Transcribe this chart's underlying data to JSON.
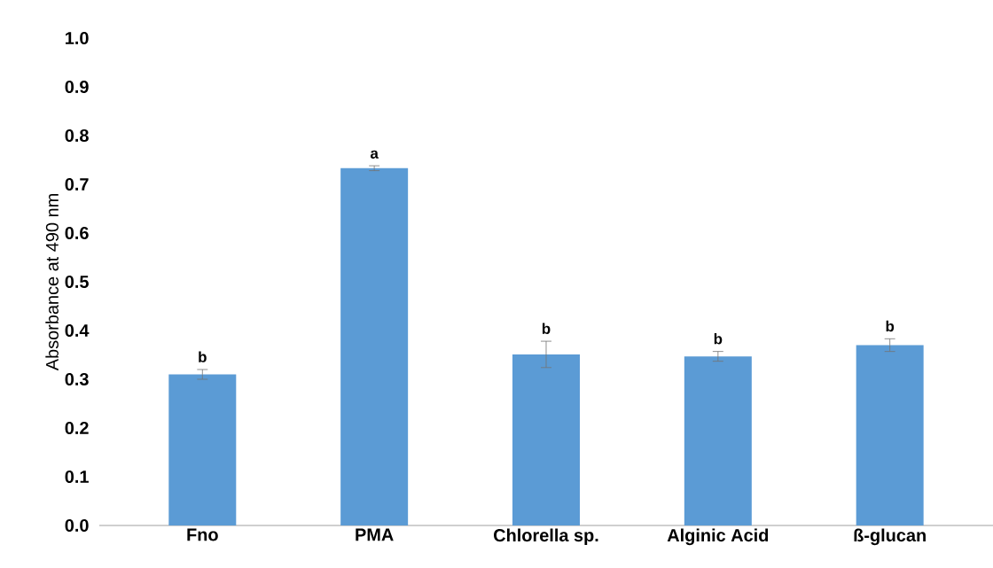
{
  "chart_data": {
    "type": "bar",
    "ylabel": "Absorbance at 490 nm",
    "categories": [
      "Fno",
      "PMA",
      "Chlorella sp.",
      "Alginic Acid",
      "ß-glucan"
    ],
    "values": [
      0.31,
      0.733,
      0.351,
      0.347,
      0.37
    ],
    "errors": [
      0.01,
      0.005,
      0.027,
      0.01,
      0.013
    ],
    "color": "#5b9bd5",
    "ylim": [
      0,
      1.0
    ],
    "yticks": [
      {
        "value": 0,
        "label": "0.0"
      },
      0.1,
      0.2,
      0.3,
      0.4,
      0.5,
      0.6,
      0.7,
      0.8,
      0.9,
      {
        "value": 1,
        "label": "1.0"
      }
    ],
    "annotations": [
      {
        "text": "b",
        "x": "Fno",
        "y": 0.32
      },
      {
        "text": "a",
        "x": "PMA",
        "y": 0.738
      },
      {
        "text": "b",
        "x": "Chlorella sp.",
        "y": 0.378
      },
      {
        "text": "b",
        "x": "Alginic Acid",
        "y": 0.357
      },
      {
        "text": "b",
        "x": "ß-glucan",
        "y": 0.383
      }
    ]
  }
}
